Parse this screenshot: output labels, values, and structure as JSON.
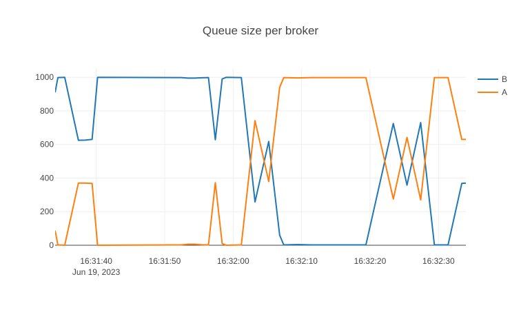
{
  "chart_data": {
    "type": "line",
    "title": "Queue size per broker",
    "xlabel": "",
    "ylabel": "",
    "x_unit": "seconds",
    "x_range": [
      "2023-06-19 16:31:34",
      "2023-06-19 16:32:34"
    ],
    "x_ticks": [
      {
        "t": "2023-06-19 16:31:40",
        "label": "16:31:40",
        "sublabel": "Jun 19, 2023"
      },
      {
        "t": "2023-06-19 16:31:50",
        "label": "16:31:50",
        "sublabel": ""
      },
      {
        "t": "2023-06-19 16:32:00",
        "label": "16:32:00",
        "sublabel": ""
      },
      {
        "t": "2023-06-19 16:32:10",
        "label": "16:32:10",
        "sublabel": ""
      },
      {
        "t": "2023-06-19 16:32:20",
        "label": "16:32:20",
        "sublabel": ""
      },
      {
        "t": "2023-06-19 16:32:30",
        "label": "16:32:30",
        "sublabel": ""
      }
    ],
    "ylim": [
      0,
      1050
    ],
    "y_ticks": [
      0,
      200,
      400,
      600,
      800,
      1000
    ],
    "grid": true,
    "legend": "top-right",
    "series": [
      {
        "name": "B",
        "color": "#1f77b4",
        "points": [
          [
            "2023-06-19 16:31:34.0",
            910
          ],
          [
            "2023-06-19 16:31:34.4",
            998
          ],
          [
            "2023-06-19 16:31:35.4",
            1000
          ],
          [
            "2023-06-19 16:31:37.4",
            625
          ],
          [
            "2023-06-19 16:31:38.4",
            626
          ],
          [
            "2023-06-19 16:31:39.4",
            630
          ],
          [
            "2023-06-19 16:31:40.2",
            1000
          ],
          [
            "2023-06-19 16:31:52.4",
            998
          ],
          [
            "2023-06-19 16:31:53.4",
            995
          ],
          [
            "2023-06-19 16:31:54.4",
            995
          ],
          [
            "2023-06-19 16:31:55.4",
            997
          ],
          [
            "2023-06-19 16:31:56.4",
            998
          ],
          [
            "2023-06-19 16:31:57.4",
            628
          ],
          [
            "2023-06-19 16:31:58.4",
            990
          ],
          [
            "2023-06-19 16:31:59.0",
            1000
          ],
          [
            "2023-06-19 16:32:01.2",
            998
          ],
          [
            "2023-06-19 16:32:03.2",
            258
          ],
          [
            "2023-06-19 16:32:05.2",
            618
          ],
          [
            "2023-06-19 16:32:06.8",
            60
          ],
          [
            "2023-06-19 16:32:07.4",
            2
          ],
          [
            "2023-06-19 16:32:09.4",
            4
          ],
          [
            "2023-06-19 16:32:11.4",
            2
          ],
          [
            "2023-06-19 16:32:19.4",
            2
          ],
          [
            "2023-06-19 16:32:23.4",
            725
          ],
          [
            "2023-06-19 16:32:25.4",
            358
          ],
          [
            "2023-06-19 16:32:27.4",
            730
          ],
          [
            "2023-06-19 16:32:29.4",
            2
          ],
          [
            "2023-06-19 16:32:31.4",
            2
          ],
          [
            "2023-06-19 16:32:33.4",
            368
          ],
          [
            "2023-06-19 16:32:34.0",
            370
          ]
        ]
      },
      {
        "name": "A",
        "color": "#ff7f0e",
        "points": [
          [
            "2023-06-19 16:31:34.0",
            88
          ],
          [
            "2023-06-19 16:31:34.4",
            2
          ],
          [
            "2023-06-19 16:31:35.4",
            0
          ],
          [
            "2023-06-19 16:31:37.4",
            370
          ],
          [
            "2023-06-19 16:31:38.4",
            370
          ],
          [
            "2023-06-19 16:31:39.4",
            368
          ],
          [
            "2023-06-19 16:31:40.2",
            0
          ],
          [
            "2023-06-19 16:31:52.4",
            2
          ],
          [
            "2023-06-19 16:31:53.4",
            6
          ],
          [
            "2023-06-19 16:31:54.4",
            6
          ],
          [
            "2023-06-19 16:31:55.4",
            3
          ],
          [
            "2023-06-19 16:31:56.4",
            2
          ],
          [
            "2023-06-19 16:31:57.4",
            372
          ],
          [
            "2023-06-19 16:31:58.4",
            10
          ],
          [
            "2023-06-19 16:31:59.0",
            0
          ],
          [
            "2023-06-19 16:32:01.2",
            2
          ],
          [
            "2023-06-19 16:32:03.2",
            742
          ],
          [
            "2023-06-19 16:32:05.2",
            380
          ],
          [
            "2023-06-19 16:32:06.8",
            940
          ],
          [
            "2023-06-19 16:32:07.4",
            998
          ],
          [
            "2023-06-19 16:32:09.4",
            996
          ],
          [
            "2023-06-19 16:32:11.4",
            998
          ],
          [
            "2023-06-19 16:32:19.4",
            998
          ],
          [
            "2023-06-19 16:32:23.4",
            275
          ],
          [
            "2023-06-19 16:32:25.4",
            642
          ],
          [
            "2023-06-19 16:32:27.4",
            270
          ],
          [
            "2023-06-19 16:32:29.4",
            998
          ],
          [
            "2023-06-19 16:32:31.4",
            998
          ],
          [
            "2023-06-19 16:32:33.4",
            630
          ],
          [
            "2023-06-19 16:32:34.0",
            630
          ]
        ]
      }
    ]
  }
}
